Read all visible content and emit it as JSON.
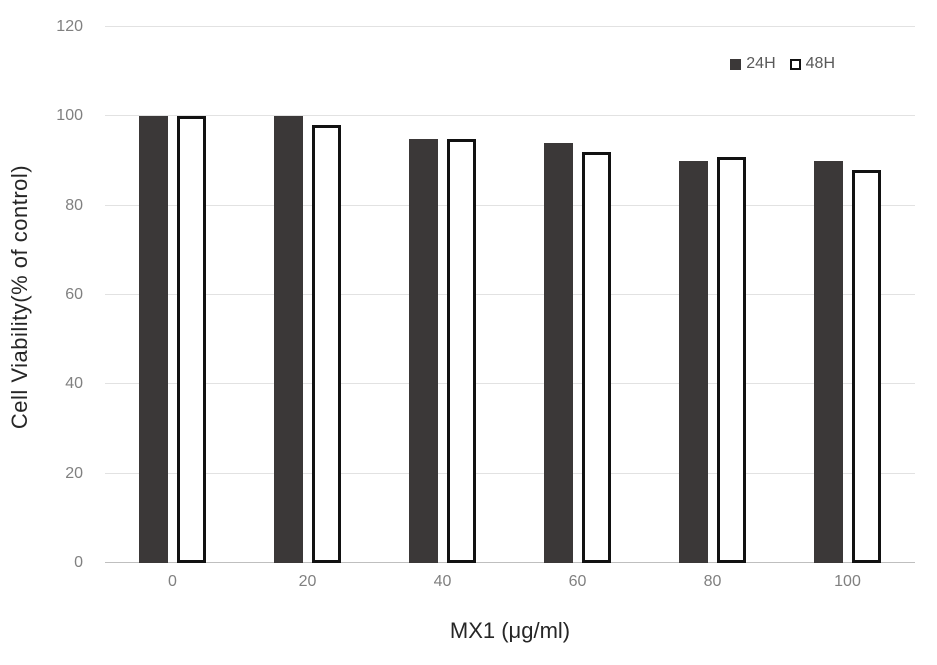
{
  "chart_data": {
    "type": "bar",
    "title": "",
    "categories": [
      "0",
      "20",
      "40",
      "60",
      "80",
      "100"
    ],
    "series": [
      {
        "name": "24H",
        "values": [
          100,
          100,
          95,
          94,
          90,
          90
        ],
        "fill": "#3b3838",
        "border": "#3b3838",
        "border_width": 0
      },
      {
        "name": "48H",
        "values": [
          100,
          98,
          95,
          92,
          91,
          88
        ],
        "fill": "#ffffff",
        "border": "#111111",
        "border_width": 3
      }
    ],
    "xlabel": "MX1 (μg/ml)",
    "ylabel": "Cell Viability(% of control)",
    "ylim": [
      0,
      120
    ],
    "yticks": [
      0,
      20,
      40,
      60,
      80,
      100,
      120
    ],
    "grid": true,
    "legend_position": "top-right",
    "colors": {
      "gridline": "#e2e2e2",
      "baseline": "#bfbfbf",
      "tick_label": "#808080",
      "axis_title": "#262626",
      "legend_text": "#595959",
      "background": "#ffffff"
    }
  }
}
